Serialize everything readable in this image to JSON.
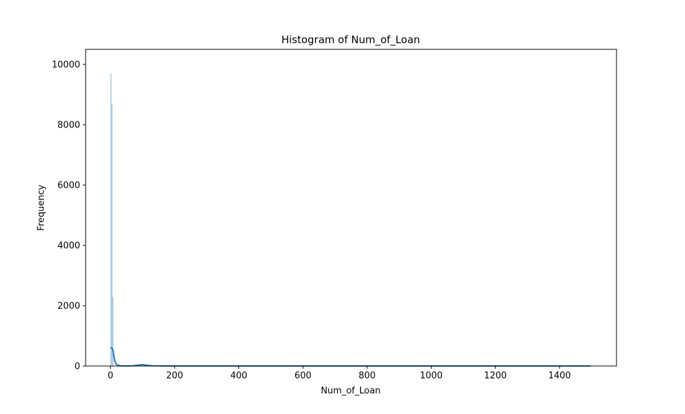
{
  "chart_data": {
    "type": "bar",
    "title": "Histogram of Num_of_Loan",
    "xlabel": "Num_of_Loan",
    "ylabel": "Frequency",
    "xlim": [
      -77.5,
      1577.5
    ],
    "ylim": [
      0,
      10500
    ],
    "x_ticks": [
      0,
      200,
      400,
      600,
      800,
      1000,
      1200,
      1400
    ],
    "y_ticks": [
      0,
      2000,
      4000,
      6000,
      8000,
      10000
    ],
    "grid": false,
    "legend": "none",
    "bar_color": "#1f77b4",
    "bins": [
      {
        "x0": 0,
        "x1": 3,
        "value": 9700
      },
      {
        "x0": 3,
        "x1": 6,
        "value": 8700
      },
      {
        "x0": 6,
        "x1": 9,
        "value": 2300
      },
      {
        "x0": 9,
        "x1": 12,
        "value": 10
      },
      {
        "x0": 96,
        "x1": 99,
        "value": 20
      },
      {
        "x0": 99,
        "x1": 102,
        "value": 15
      },
      {
        "x0": 300,
        "x1": 303,
        "value": 3
      },
      {
        "x0": 600,
        "x1": 603,
        "value": 3
      },
      {
        "x0": 900,
        "x1": 903,
        "value": 3
      },
      {
        "x0": 1200,
        "x1": 1203,
        "value": 3
      },
      {
        "x0": 1494,
        "x1": 1497,
        "value": 3
      }
    ],
    "kde": {
      "name": "",
      "color": "#1f77b4",
      "points": [
        [
          0,
          610
        ],
        [
          5,
          590
        ],
        [
          8,
          520
        ],
        [
          10,
          380
        ],
        [
          13,
          180
        ],
        [
          17,
          80
        ],
        [
          22,
          30
        ],
        [
          30,
          8
        ],
        [
          45,
          3
        ],
        [
          70,
          8
        ],
        [
          90,
          35
        ],
        [
          100,
          45
        ],
        [
          110,
          30
        ],
        [
          130,
          8
        ],
        [
          170,
          3
        ],
        [
          250,
          2
        ],
        [
          400,
          2
        ],
        [
          600,
          2
        ],
        [
          800,
          2
        ],
        [
          1000,
          2
        ],
        [
          1200,
          2
        ],
        [
          1400,
          2
        ],
        [
          1497,
          2
        ]
      ]
    }
  }
}
